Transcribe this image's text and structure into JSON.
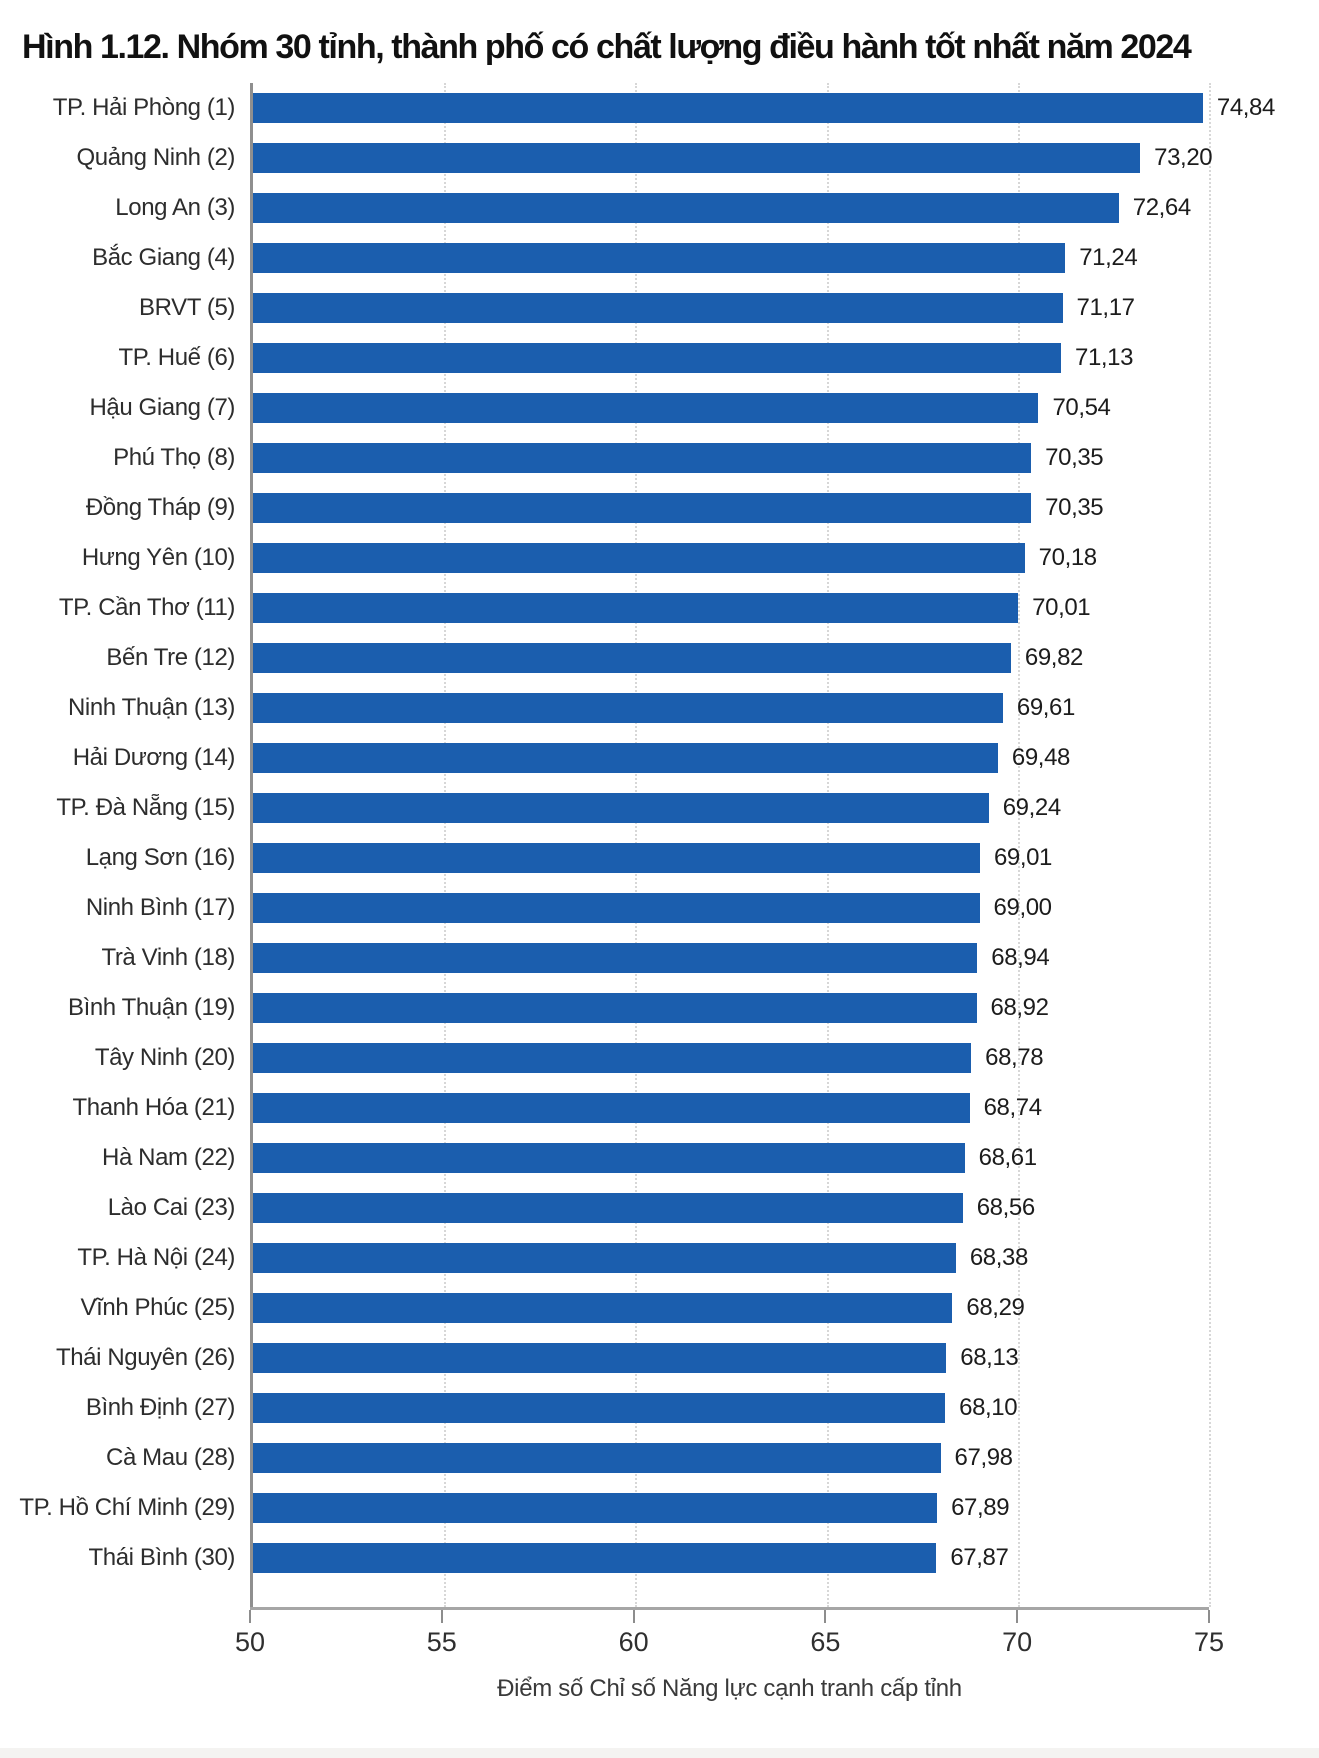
{
  "title": "Hình 1.12. Nhóm 30 tỉnh, thành phố có chất lượng điều hành tốt nhất năm 2024",
  "chart_data": {
    "type": "bar",
    "orientation": "horizontal",
    "title": "Hình 1.12. Nhóm 30 tỉnh, thành phố có chất lượng điều hành tốt nhất năm 2024",
    "xlabel": "Điểm số Chỉ số Năng lực cạnh tranh cấp tỉnh",
    "ylabel": "",
    "xlim": [
      50,
      75
    ],
    "xticks": [
      50,
      55,
      60,
      65,
      70,
      75
    ],
    "grid": "dotted-vertical",
    "legend": "none",
    "bar_color": "#1b5eae",
    "axis_line_color": "#a6a6a6",
    "gridline_color": "#d7d7d7",
    "text_color": "#1c1c1c",
    "categories": [
      "TP. Hải Phòng (1)",
      "Quảng Ninh (2)",
      "Long An (3)",
      "Bắc Giang (4)",
      "BRVT (5)",
      "TP. Huế (6)",
      "Hậu Giang (7)",
      "Phú Thọ (8)",
      "Đồng Tháp (9)",
      "Hưng Yên (10)",
      "TP. Cần Thơ (11)",
      "Bến Tre (12)",
      "Ninh Thuận (13)",
      "Hải Dương (14)",
      "TP. Đà Nẵng (15)",
      "Lạng Sơn (16)",
      "Ninh Bình (17)",
      "Trà Vinh (18)",
      "Bình Thuận (19)",
      "Tây Ninh (20)",
      "Thanh Hóa (21)",
      "Hà Nam (22)",
      "Lào Cai (23)",
      "TP. Hà Nội (24)",
      "Vĩnh Phúc (25)",
      "Thái Nguyên (26)",
      "Bình Định (27)",
      "Cà Mau (28)",
      "TP. Hồ Chí Minh (29)",
      "Thái Bình (30)"
    ],
    "values": [
      74.84,
      73.2,
      72.64,
      71.24,
      71.17,
      71.13,
      70.54,
      70.35,
      70.35,
      70.18,
      70.01,
      69.82,
      69.61,
      69.48,
      69.24,
      69.01,
      69.0,
      68.94,
      68.92,
      68.78,
      68.74,
      68.61,
      68.56,
      68.38,
      68.29,
      68.13,
      68.1,
      67.98,
      67.89,
      67.87
    ],
    "value_labels": [
      "74,84",
      "73,20",
      "72,64",
      "71,24",
      "71,17",
      "71,13",
      "70,54",
      "70,35",
      "70,35",
      "70,18",
      "70,01",
      "69,82",
      "69,61",
      "69,48",
      "69,24",
      "69,01",
      "69,00",
      "68,94",
      "68,92",
      "68,78",
      "68,74",
      "68,61",
      "68,56",
      "68,38",
      "68,29",
      "68,13",
      "68,10",
      "67,98",
      "67,89",
      "67,87"
    ]
  }
}
